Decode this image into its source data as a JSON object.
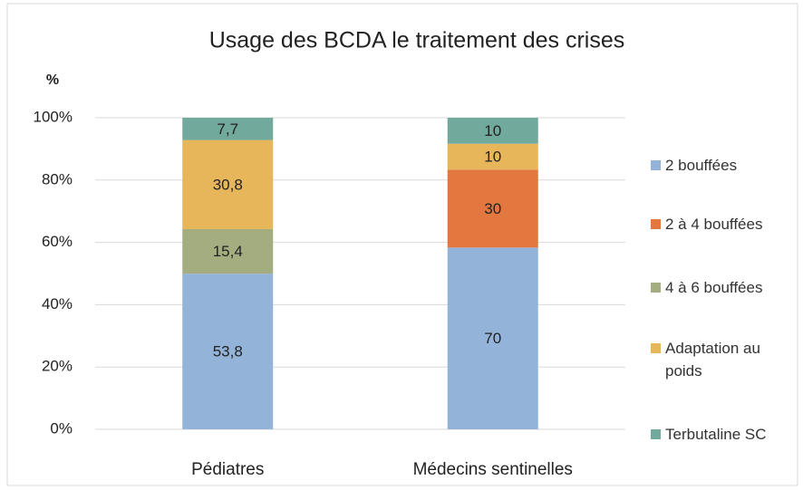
{
  "chart_data": {
    "type": "bar",
    "stacked": "percent",
    "title": "Usage des BCDA le traitement des crises",
    "y_label": "%",
    "categories": [
      "Pédiatres",
      "Médecins sentinelles"
    ],
    "series": [
      {
        "name": "2 bouffées",
        "color": "#93b3d9",
        "values": [
          53.8,
          70
        ],
        "value_labels": [
          "53,8",
          "70"
        ]
      },
      {
        "name": "2 à 4 bouffées",
        "color": "#e2773f",
        "values": [
          null,
          30
        ],
        "value_labels": [
          null,
          "30"
        ]
      },
      {
        "name": "4 à 6 bouffées",
        "color": "#a3ad80",
        "values": [
          15.4,
          null
        ],
        "value_labels": [
          "15,4",
          null
        ]
      },
      {
        "name": "Adaptation au poids",
        "color": "#e8b65a",
        "values": [
          30.8,
          10
        ],
        "value_labels": [
          "30,8",
          "10"
        ]
      },
      {
        "name": "Terbutaline SC",
        "color": "#71a99c",
        "values": [
          7.7,
          10
        ],
        "value_labels": [
          "7,7",
          "10"
        ]
      }
    ],
    "ylim": [
      0,
      100
    ],
    "yticks": [
      {
        "value": 0,
        "label": "0%"
      },
      {
        "value": 20,
        "label": "20%"
      },
      {
        "value": 40,
        "label": "40%"
      },
      {
        "value": 60,
        "label": "60%"
      },
      {
        "value": 80,
        "label": "80%"
      },
      {
        "value": 100,
        "label": "100%"
      }
    ],
    "grid": true,
    "legend": "right"
  }
}
